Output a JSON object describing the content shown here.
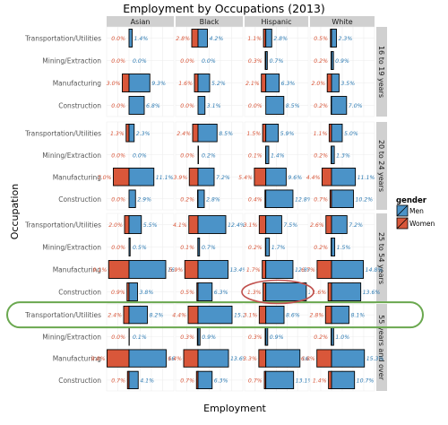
{
  "chart_data": {
    "type": "bar",
    "title": "Employment by Occupations (2013)",
    "xlabel": "Employment",
    "ylabel": "Occupation",
    "facet_columns": [
      "Asian",
      "Black",
      "Hispanic",
      "White"
    ],
    "facet_rows": [
      "16 to 19 years",
      "20 to 24 years",
      "25 to 54 years",
      "55 years and over"
    ],
    "categories": [
      "Transportation/Utilities",
      "Mining/Extraction",
      "Manufacturing",
      "Construction"
    ],
    "legend": {
      "title": "gender",
      "position": "right",
      "entries": [
        {
          "label": "Men",
          "color": "#4b93c8"
        },
        {
          "label": "Women",
          "color": "#d9573a"
        }
      ]
    },
    "colors": {
      "men": "#4b93c8",
      "women": "#d9573a",
      "highlight_row": "#6aa84f",
      "highlight_cell": "#c0504d",
      "strip": "#d0d0d0"
    },
    "series": [
      {
        "name": "Men",
        "panels": {
          "16 to 19 years": {
            "Asian": [
              1.4,
              0.0,
              9.3,
              6.8
            ],
            "Black": [
              4.2,
              0.0,
              5.2,
              3.1
            ],
            "Hispanic": [
              2.8,
              0.7,
              6.3,
              8.5
            ],
            "White": [
              2.3,
              0.9,
              3.5,
              7.0
            ]
          },
          "20 to 24 years": {
            "Asian": [
              2.3,
              0.0,
              11.1,
              2.9
            ],
            "Black": [
              8.5,
              0.2,
              7.2,
              2.8
            ],
            "Hispanic": [
              5.9,
              1.4,
              9.6,
              12.8
            ],
            "White": [
              5.0,
              1.3,
              11.1,
              10.2
            ]
          },
          "25 to 54 years": {
            "Asian": [
              5.5,
              0.5,
              16.4,
              3.8
            ],
            "Black": [
              12.4,
              0.7,
              13.4,
              6.3
            ],
            "Hispanic": [
              7.5,
              1.7,
              12.8,
              19.1
            ],
            "White": [
              7.2,
              1.5,
              14.8,
              13.6
            ]
          },
          "55 years and over": {
            "Asian": [
              8.2,
              0.1,
              16.6,
              4.1
            ],
            "Black": [
              15.2,
              0.9,
              13.6,
              6.3
            ],
            "Hispanic": [
              8.6,
              0.9,
              16.1,
              13.1
            ],
            "White": [
              8.1,
              1.0,
              15.3,
              10.7
            ]
          }
        }
      },
      {
        "name": "Women",
        "panels": {
          "16 to 19 years": {
            "Asian": [
              0.0,
              0.0,
              3.0,
              0.0
            ],
            "Black": [
              2.8,
              0.0,
              1.6,
              0.0
            ],
            "Hispanic": [
              1.1,
              0.3,
              2.1,
              0.0
            ],
            "White": [
              0.5,
              0.2,
              2.0,
              0.2
            ]
          },
          "20 to 24 years": {
            "Asian": [
              1.3,
              0.0,
              7.0,
              0.0
            ],
            "Black": [
              2.4,
              0.0,
              3.9,
              0.2
            ],
            "Hispanic": [
              1.5,
              0.1,
              5.4,
              0.4
            ],
            "White": [
              1.1,
              0.2,
              4.4,
              0.7
            ]
          },
          "25 to 54 years": {
            "Asian": [
              2.0,
              0.0,
              9.1,
              0.9
            ],
            "Black": [
              4.1,
              0.1,
              5.9,
              0.5
            ],
            "Hispanic": [
              3.1,
              0.2,
              1.7,
              1.3
            ],
            "White": [
              2.6,
              0.2,
              6.7,
              1.6
            ]
          },
          "55 years and over": {
            "Asian": [
              2.4,
              0.0,
              9.8,
              0.7
            ],
            "Black": [
              4.4,
              0.3,
              6.4,
              0.7
            ],
            "Hispanic": [
              3.1,
              0.3,
              3.3,
              0.7
            ],
            "White": [
              2.8,
              0.2,
              6.8,
              1.4
            ]
          }
        }
      }
    ],
    "xlim": [
      -10,
      20
    ],
    "grid": true
  }
}
